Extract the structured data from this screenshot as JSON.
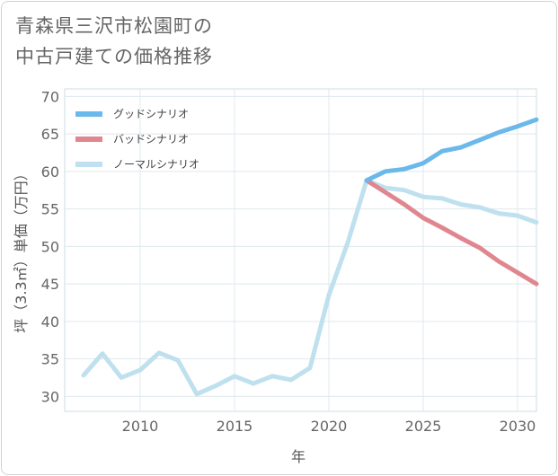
{
  "title_lines": [
    "青森県三沢市松園町の",
    "中古戸建ての価格推移"
  ],
  "chart_data": {
    "type": "line",
    "xlabel": "年",
    "ylabel": "坪（3.3㎡）単価（万円）",
    "xlim": [
      2006,
      2031
    ],
    "ylim": [
      28,
      71
    ],
    "xticks": [
      2010,
      2015,
      2020,
      2025,
      2030
    ],
    "yticks": [
      30,
      35,
      40,
      45,
      50,
      55,
      60,
      65,
      70
    ],
    "grid": true,
    "legend_position": "top-left",
    "series": [
      {
        "name": "グッドシナリオ",
        "color": "#6bb8ea",
        "x": [
          2022,
          2023,
          2024,
          2025,
          2026,
          2027,
          2028,
          2029,
          2030,
          2031
        ],
        "y": [
          58.8,
          60.0,
          60.3,
          61.1,
          62.7,
          63.2,
          64.2,
          65.2,
          66.0,
          66.9
        ]
      },
      {
        "name": "バッドシナリオ",
        "color": "#e0868f",
        "x": [
          2022,
          2023,
          2024,
          2025,
          2026,
          2027,
          2028,
          2029,
          2030,
          2031
        ],
        "y": [
          58.8,
          57.2,
          55.6,
          53.8,
          52.5,
          51.1,
          49.8,
          48.0,
          46.5,
          45.0
        ]
      },
      {
        "name": "ノーマルシナリオ",
        "color": "#bfe0ee",
        "x": [
          2007,
          2008,
          2009,
          2010,
          2011,
          2012,
          2013,
          2014,
          2015,
          2016,
          2017,
          2018,
          2019,
          2020,
          2021,
          2022,
          2023,
          2024,
          2025,
          2026,
          2027,
          2028,
          2029,
          2030,
          2031
        ],
        "y": [
          32.8,
          35.7,
          32.5,
          33.5,
          35.8,
          34.8,
          30.3,
          31.4,
          32.7,
          31.7,
          32.7,
          32.2,
          33.8,
          43.5,
          50.5,
          58.8,
          57.8,
          57.5,
          56.6,
          56.4,
          55.6,
          55.2,
          54.4,
          54.1,
          53.2
        ]
      }
    ]
  }
}
